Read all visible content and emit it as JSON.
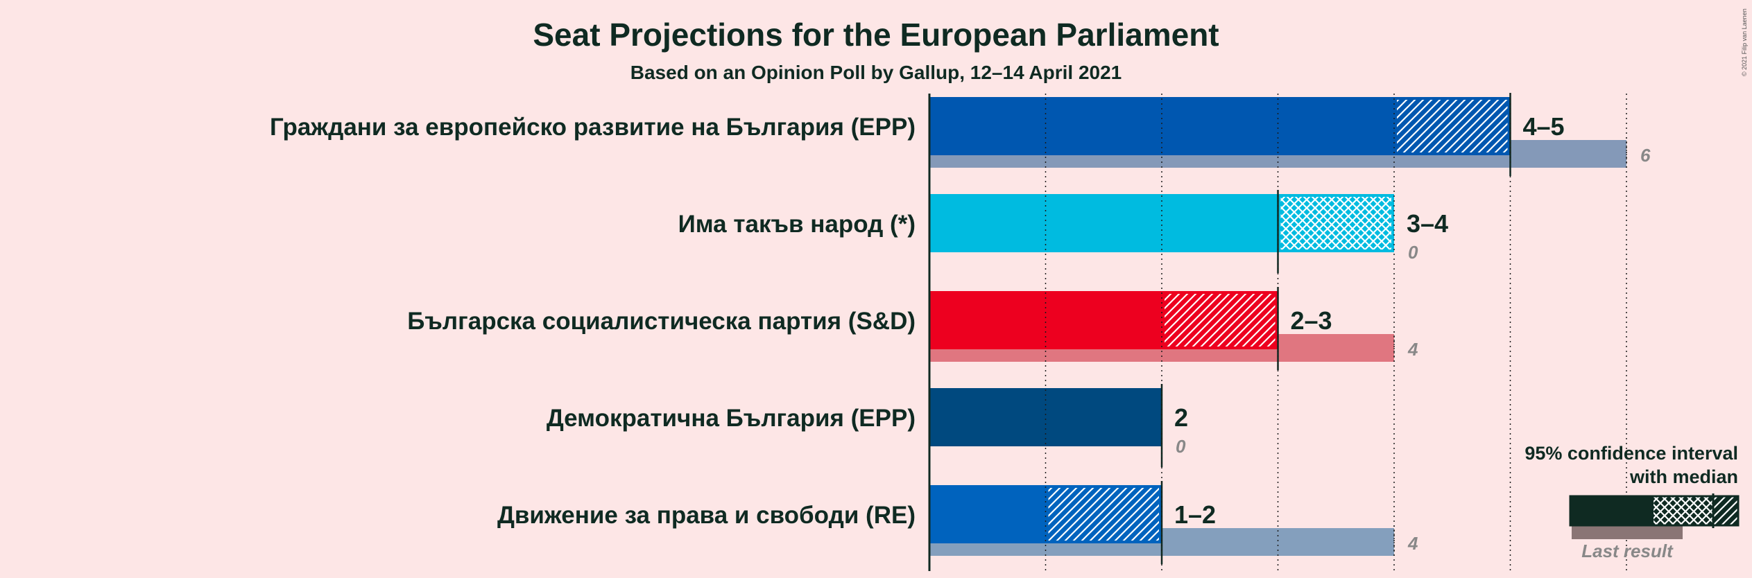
{
  "chart_data": {
    "type": "bar",
    "orientation": "horizontal",
    "title": "Seat Projections for the European Parliament",
    "subtitle": "Based on an Opinion Poll by Gallup, 12–14 April 2021",
    "x_range": [
      0,
      6
    ],
    "grid": true,
    "parties": [
      {
        "name": "Граждани за европейско развитие на България (EPP)",
        "low": 4,
        "median": 5,
        "high": 5,
        "range_label": "4–5",
        "last_result": 6,
        "last_label": "6",
        "color": "#0057b0",
        "last_color": "#8499b8"
      },
      {
        "name": "Има такъв народ (*)",
        "low": 3,
        "median": 3,
        "high": 4,
        "range_label": "3–4",
        "last_result": 0,
        "last_label": "0",
        "color": "#00bbe0",
        "last_color": "#8fd3e6"
      },
      {
        "name": "Българска социалистическа партия (S&D)",
        "low": 2,
        "median": 3,
        "high": 3,
        "range_label": "2–3",
        "last_result": 4,
        "last_label": "4",
        "color": "#ed001f",
        "last_color": "#e07680"
      },
      {
        "name": "Демократична България (EPP)",
        "low": 2,
        "median": 2,
        "high": 2,
        "range_label": "2",
        "last_result": 0,
        "last_label": "0",
        "color": "#00497f",
        "last_color": "#7f9ab5"
      },
      {
        "name": "Движение за права и свободи (RE)",
        "low": 1,
        "median": 2,
        "high": 2,
        "range_label": "1–2",
        "last_result": 4,
        "last_label": "4",
        "color": "#0063be",
        "last_color": "#849fbd"
      }
    ],
    "legend": {
      "line1": "95% confidence interval",
      "line2": "with median",
      "last_result": "Last result",
      "position": "bottom-right",
      "color": "#0f2a22"
    },
    "copyright": "© 2021 Filip van Laenen"
  }
}
